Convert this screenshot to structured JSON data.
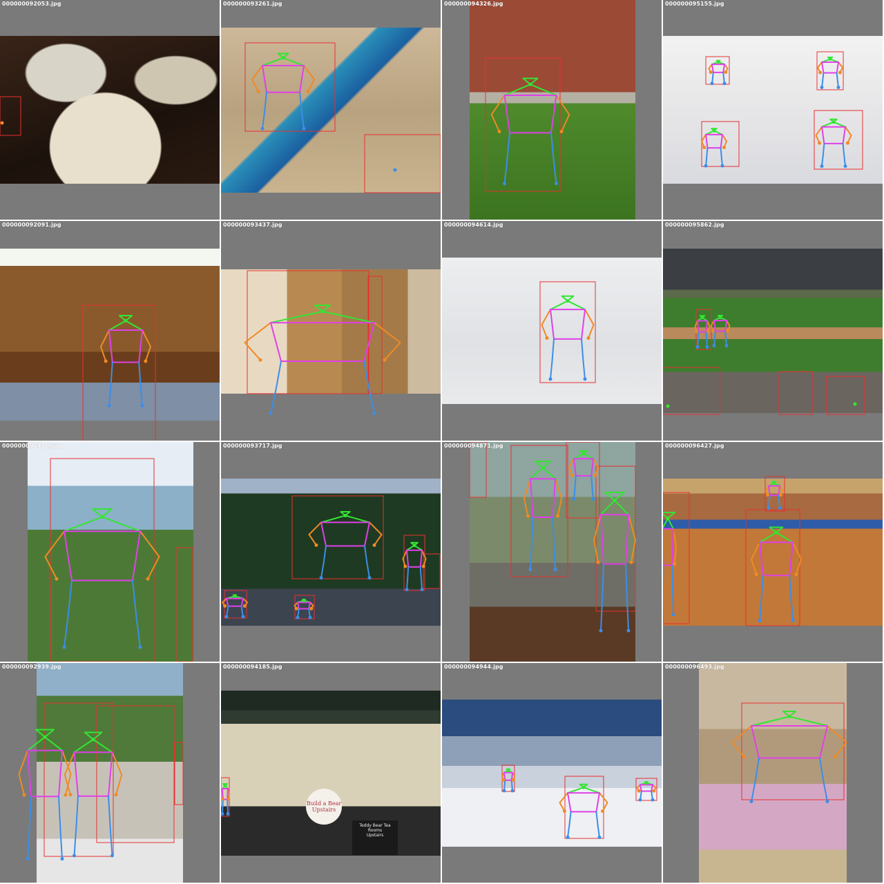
{
  "colors": {
    "background": "#7a7a7a",
    "box": "#e83030",
    "head": "#32e632",
    "left_arm": "#f08a24",
    "right_arm": "#f08a24",
    "torso": "#e040e8",
    "legs": "#3b8ee8"
  },
  "tiles": [
    {
      "filename": "000000092053.jpg",
      "scene": "plates-of-food-on-table"
    },
    {
      "filename": "000000093261.jpg",
      "scene": "people-on-sandy-beach-with-kite"
    },
    {
      "filename": "000000094326.jpg",
      "scene": "person-with-newspaper-on-bench"
    },
    {
      "filename": "000000095155.jpg",
      "scene": "snowboarder-sequence"
    },
    {
      "filename": "000000092091.jpg",
      "scene": "child-in-living-room"
    },
    {
      "filename": "000000093437.jpg",
      "scene": "man-in-kitchen"
    },
    {
      "filename": "000000094614.jpg",
      "scene": "skier-on-slope"
    },
    {
      "filename": "000000095862.jpg",
      "scene": "baseball-stadium"
    },
    {
      "filename": "000000092416.jpg",
      "scene": "man-in-suit-by-lake"
    },
    {
      "filename": "000000093717.jpg",
      "scene": "skateboarder-jump-collage"
    },
    {
      "filename": "000000094871.jpg",
      "scene": "people-with-sheep"
    },
    {
      "filename": "000000096427.jpg",
      "scene": "children-playing-tennis"
    },
    {
      "filename": "000000092939.jpg",
      "scene": "couple-cutting-wedding-cake"
    },
    {
      "filename": "000000094185.jpg",
      "scene": "teddy-bear-shop-front"
    },
    {
      "filename": "000000094944.jpg",
      "scene": "skiers-in-mountains"
    },
    {
      "filename": "000000096493.jpg",
      "scene": "child-on-sofa"
    }
  ],
  "shop_sign": {
    "line1": "Build a Bear",
    "line2": "Upstairs",
    "board_title": "Teddy Bear Tea Rooms",
    "board_sub": "Upstairs"
  }
}
